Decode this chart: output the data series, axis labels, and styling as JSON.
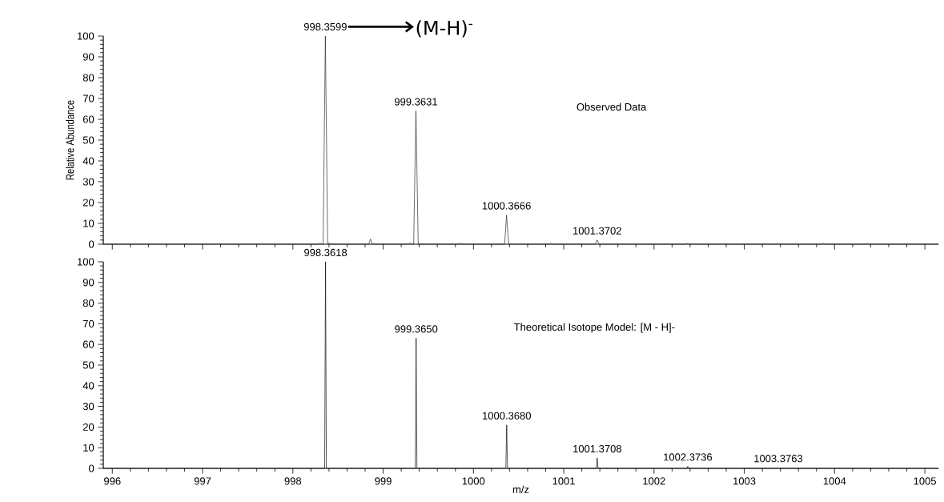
{
  "chart_data": [
    {
      "type": "line",
      "ylabel": "Relative Abundance",
      "tick_labels": "y",
      "xlim": [
        995.9,
        1005.15
      ],
      "ylim": [
        0,
        100
      ],
      "xticks": [
        996,
        997,
        998,
        999,
        1000,
        1001,
        1002,
        1003,
        1004,
        1005
      ],
      "yticks": [
        0,
        10,
        20,
        30,
        40,
        50,
        60,
        70,
        80,
        90,
        100
      ],
      "series": [
        {
          "color": "#222222",
          "x": [
            995.9,
            998.28,
            998.3,
            998.32,
            998.335,
            998.3599,
            998.385,
            998.4,
            998.42,
            998.84,
            998.86,
            998.88,
            999.28,
            999.3,
            999.32,
            999.338,
            999.3631,
            999.388,
            999.84,
            999.855,
            999.87,
            1000.345,
            1000.3666,
            1000.39,
            1000.84,
            1000.855,
            1000.87,
            1001.35,
            1001.3702,
            1001.39,
            1002.35,
            1002.365,
            1002.38,
            1003.35,
            1003.365,
            1003.38,
            1003.86,
            1003.875,
            1003.89,
            1004.35,
            1004.365,
            1004.38,
            1005.15
          ],
          "values": [
            0,
            0,
            0.5,
            0,
            0,
            100,
            0,
            0.6,
            0,
            0,
            2.5,
            0,
            0,
            0.6,
            0,
            0,
            64,
            0,
            0,
            0.6,
            0,
            0,
            14,
            0,
            0,
            0.5,
            0,
            0,
            2,
            0,
            0,
            0.4,
            0,
            0,
            0.4,
            0,
            0,
            0.4,
            0,
            0,
            0.3,
            0,
            0
          ]
        }
      ],
      "annotations": [
        {
          "text": "998.3599",
          "x": 998.3599,
          "y": 100
        },
        {
          "text": "999.3631",
          "x": 999.3631,
          "y": 64
        },
        {
          "text": "1000.3666",
          "x": 1000.3666,
          "y": 14
        },
        {
          "text": "1001.3702",
          "x": 1001.3702,
          "y": 2
        },
        "(M-H)$^{-}$",
        "Observed Data"
      ]
    },
    {
      "type": "line",
      "xlabel": "m/z",
      "xlim": [
        995.9,
        1005.15
      ],
      "ylim": [
        0,
        100
      ],
      "xticks": [
        996,
        997,
        998,
        999,
        1000,
        1001,
        1002,
        1003,
        1004,
        1005
      ],
      "yticks": [
        0,
        10,
        20,
        30,
        40,
        50,
        60,
        70,
        80,
        90,
        100
      ],
      "series": [
        {
          "color": "#000000",
          "x": [
            995.9,
            998.352,
            998.3618,
            998.371,
            999.356,
            999.365,
            999.374,
            1000.359,
            1000.368,
            1000.377,
            1001.362,
            1001.3708,
            1001.38,
            1002.365,
            1002.3736,
            1002.382,
            1003.368,
            1003.3763,
            1003.385,
            1005.15
          ],
          "values": [
            0,
            0,
            100,
            0,
            0,
            63,
            0,
            0,
            21,
            0,
            0,
            5,
            0,
            0,
            1,
            0,
            0,
            0.3,
            0,
            0
          ]
        }
      ],
      "annotations": [
        {
          "text": "998.3618",
          "x": 998.3618,
          "y": 100
        },
        {
          "text": "999.3650",
          "x": 999.365,
          "y": 63
        },
        {
          "text": "1000.3680",
          "x": 1000.368,
          "y": 21
        },
        {
          "text": "1001.3708",
          "x": 1001.3708,
          "y": 5
        },
        {
          "text": "1002.3736",
          "x": 1002.3736,
          "y": 1
        },
        {
          "text": "1003.3763",
          "x": 1003.3763,
          "y": 0.3
        },
        "Theoretical Isotope Model: [M - H]-"
      ]
    }
  ]
}
